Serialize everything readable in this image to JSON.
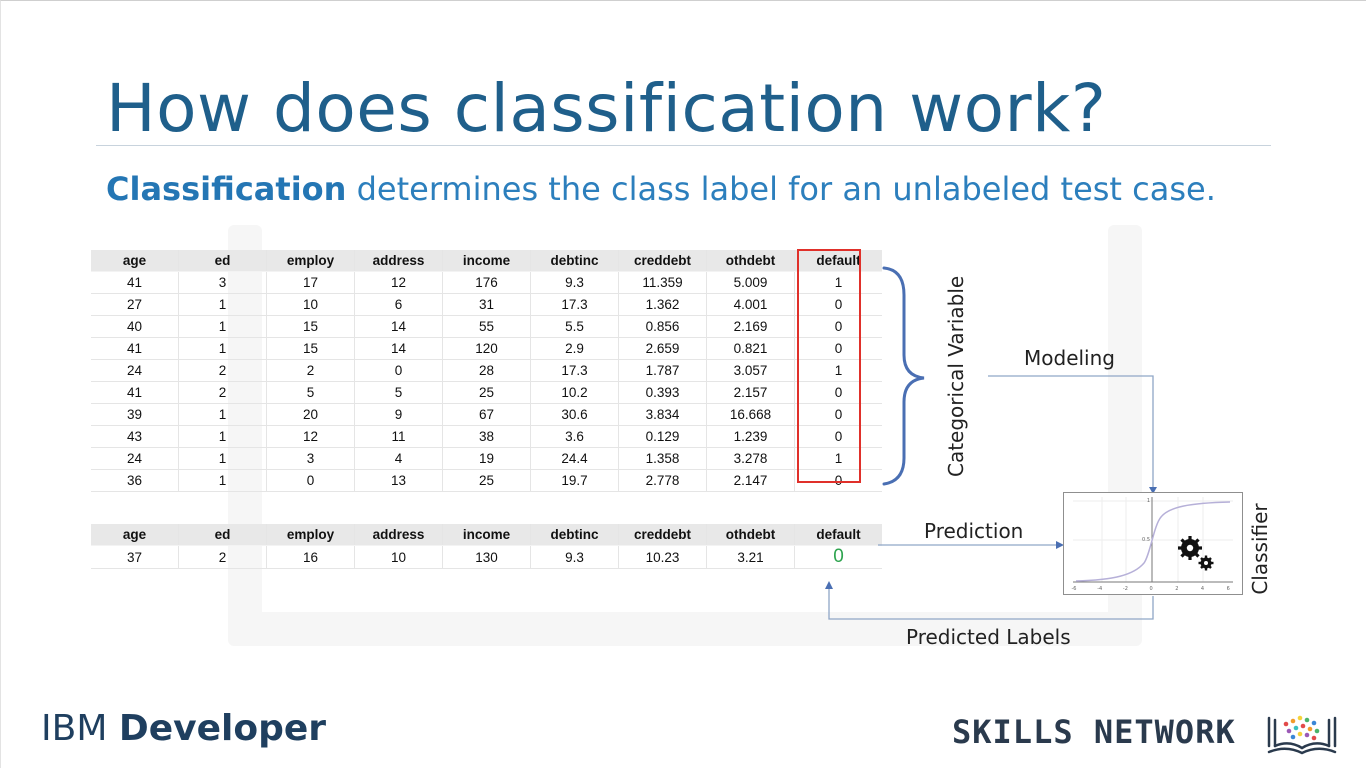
{
  "slide": {
    "title": "How does classification work?",
    "subtitle_bold": "Classification",
    "subtitle_rest": " determines the class label for an unlabeled test case."
  },
  "train_table": {
    "headers": [
      "age",
      "ed",
      "employ",
      "address",
      "income",
      "debtinc",
      "creddebt",
      "othdebt",
      "default"
    ],
    "rows": [
      [
        "41",
        "3",
        "17",
        "12",
        "176",
        "9.3",
        "11.359",
        "5.009",
        "1"
      ],
      [
        "27",
        "1",
        "10",
        "6",
        "31",
        "17.3",
        "1.362",
        "4.001",
        "0"
      ],
      [
        "40",
        "1",
        "15",
        "14",
        "55",
        "5.5",
        "0.856",
        "2.169",
        "0"
      ],
      [
        "41",
        "1",
        "15",
        "14",
        "120",
        "2.9",
        "2.659",
        "0.821",
        "0"
      ],
      [
        "24",
        "2",
        "2",
        "0",
        "28",
        "17.3",
        "1.787",
        "3.057",
        "1"
      ],
      [
        "41",
        "2",
        "5",
        "5",
        "25",
        "10.2",
        "0.393",
        "2.157",
        "0"
      ],
      [
        "39",
        "1",
        "20",
        "9",
        "67",
        "30.6",
        "3.834",
        "16.668",
        "0"
      ],
      [
        "43",
        "1",
        "12",
        "11",
        "38",
        "3.6",
        "0.129",
        "1.239",
        "0"
      ],
      [
        "24",
        "1",
        "3",
        "4",
        "19",
        "24.4",
        "1.358",
        "3.278",
        "1"
      ],
      [
        "36",
        "1",
        "0",
        "13",
        "25",
        "19.7",
        "2.778",
        "2.147",
        "0"
      ]
    ]
  },
  "test_table": {
    "headers": [
      "age",
      "ed",
      "employ",
      "address",
      "income",
      "debtinc",
      "creddebt",
      "othdebt",
      "default"
    ],
    "row": [
      "37",
      "2",
      "16",
      "10",
      "130",
      "9.3",
      "10.23",
      "3.21",
      "0"
    ]
  },
  "diagram": {
    "categorical_variable": "Categorical Variable",
    "modeling": "Modeling",
    "prediction": "Prediction",
    "classifier": "Classifier",
    "predicted_labels": "Predicted Labels",
    "plot": {
      "x_ticks": [
        "-6",
        "-4",
        "-2",
        "0",
        "2",
        "4",
        "6"
      ],
      "y_ticks": [
        "1",
        "0.5"
      ],
      "icon": "gears-icon"
    }
  },
  "colors": {
    "title": "#1f5f8b",
    "subtitle": "#2c7fbd",
    "highlight": "#e0302a",
    "prediction": "#2ea44f",
    "brace": "#4a6fb3"
  },
  "footer": {
    "ibm_prefix": "IBM ",
    "ibm_bold": "Developer",
    "skills_network": "SKILLS NETWORK"
  }
}
